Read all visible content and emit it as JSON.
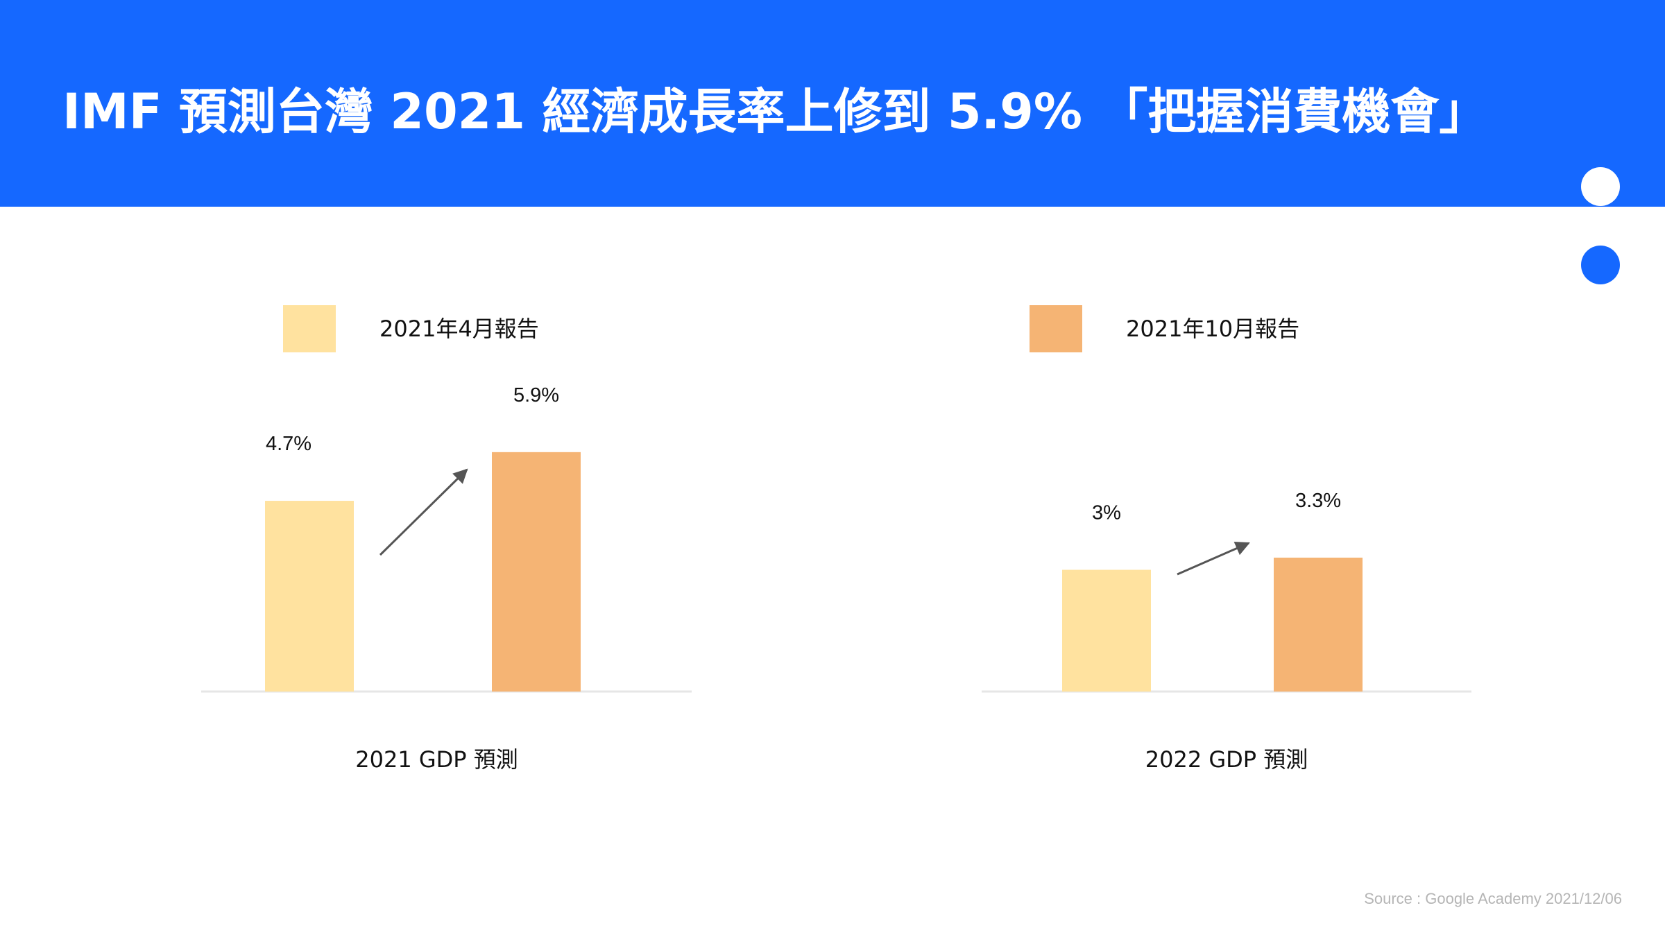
{
  "title": "IMF 預測台灣 2021 經濟成長率上修到 5.9% 「把握消費機會」",
  "source": "Source : Google Academy 2021/12/06",
  "colors": {
    "header": "#1568FF",
    "april_report": "#FFE29F",
    "october_report": "#F5B474",
    "arrow": "#555555",
    "baseline": "#e6e6e6",
    "text": "#111111"
  },
  "chart_data": [
    {
      "type": "bar",
      "title": "",
      "xlabel": "2021 GDP 預測",
      "ylabel": "",
      "series": [
        {
          "name": "2021年4月報告",
          "values": [
            4.7
          ],
          "labels": [
            "4.7%"
          ]
        },
        {
          "name": "2021年10月報告",
          "values": [
            5.9
          ],
          "labels": [
            "5.9%"
          ]
        }
      ],
      "ylim": [
        0,
        6.7
      ],
      "grid": false,
      "legend": "top-left",
      "annotation": "arrow from April to October bar"
    },
    {
      "type": "bar",
      "title": "",
      "xlabel": "2022 GDP 預測",
      "ylabel": "",
      "series": [
        {
          "name": "2021年4月報告",
          "values": [
            3.0
          ],
          "labels": [
            "3%"
          ]
        },
        {
          "name": "2021年10月報告",
          "values": [
            3.3
          ],
          "labels": [
            "3.3%"
          ]
        }
      ],
      "ylim": [
        0,
        6.7
      ],
      "grid": false,
      "legend": "top-left",
      "annotation": "arrow from April to October bar"
    }
  ]
}
